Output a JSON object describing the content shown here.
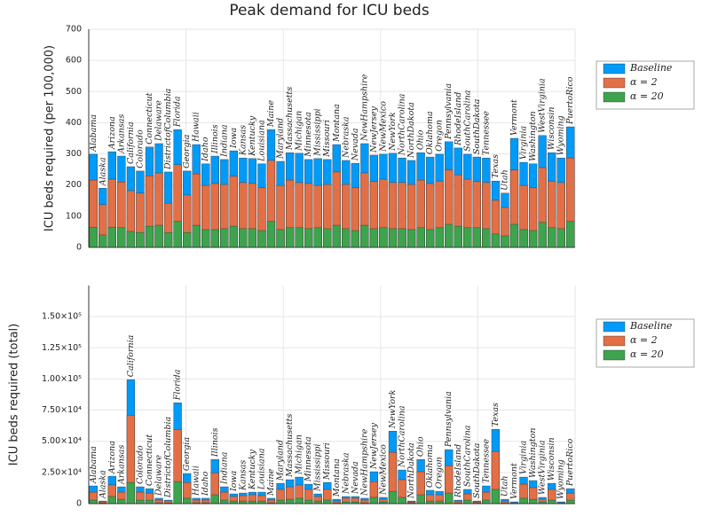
{
  "chart_data": [
    {
      "type": "bar",
      "title": "Peak demand for ICU beds",
      "y_label": "ICU beds required (per 100,000)",
      "categories": [
        "Alabama",
        "Alaska",
        "Arizona",
        "Arkansas",
        "California",
        "Colorado",
        "Connecticut",
        "Delaware",
        "DistrictofColumbia",
        "Florida",
        "Georgia",
        "Hawaii",
        "Idaho",
        "Illinois",
        "Indiana",
        "Iowa",
        "Kansas",
        "Kentucky",
        "Louisiana",
        "Maine",
        "Maryland",
        "Massachusetts",
        "Michigan",
        "Minnesota",
        "Mississippi",
        "Missouri",
        "Montana",
        "Nebraska",
        "Nevada",
        "NewHampshire",
        "NewJersey",
        "NewMexico",
        "NewYork",
        "NorthCarolina",
        "NorthDakota",
        "Ohio",
        "Oklahoma",
        "Oregon",
        "Pennsylvania",
        "RhodeIsland",
        "SouthCarolina",
        "SouthDakota",
        "Tennessee",
        "Texas",
        "Utah",
        "Vermont",
        "Virginia",
        "Washington",
        "WestVirginia",
        "Wisconsin",
        "Wyoming",
        "PuertoRico"
      ],
      "series": [
        {
          "name": "Baseline",
          "color": "#009af9",
          "values": [
            299,
            190,
            307,
            293,
            259,
            245,
            322,
            333,
            242,
            378,
            245,
            330,
            268,
            293,
            282,
            310,
            287,
            285,
            268,
            378,
            276,
            304,
            302,
            282,
            285,
            282,
            330,
            279,
            270,
            333,
            296,
            299,
            302,
            287,
            279,
            304,
            290,
            299,
            339,
            319,
            299,
            290,
            287,
            213,
            174,
            350,
            273,
            268,
            359,
            304,
            287,
            387
          ]
        },
        {
          "name": "α = 2",
          "color": "#e26f46",
          "values": [
            216,
            137,
            219,
            210,
            182,
            174,
            230,
            239,
            142,
            265,
            168,
            236,
            199,
            205,
            202,
            228,
            208,
            205,
            191,
            279,
            199,
            216,
            208,
            205,
            199,
            202,
            242,
            202,
            191,
            239,
            211,
            219,
            208,
            208,
            202,
            216,
            205,
            213,
            248,
            233,
            219,
            211,
            208,
            151,
            128,
            248,
            199,
            191,
            256,
            213,
            208,
            287
          ]
        },
        {
          "name": "α = 20",
          "color": "#3da44d",
          "values": [
            65,
            40,
            65,
            63,
            51,
            48,
            68,
            71,
            48,
            83,
            48,
            71,
            57,
            57,
            60,
            68,
            60,
            60,
            54,
            83,
            57,
            63,
            63,
            60,
            63,
            60,
            71,
            60,
            54,
            71,
            60,
            63,
            60,
            60,
            57,
            63,
            57,
            63,
            74,
            68,
            63,
            63,
            60,
            43,
            37,
            74,
            57,
            54,
            80,
            63,
            60,
            83
          ]
        }
      ],
      "ylim": [
        0,
        700
      ],
      "yticks": [
        0,
        100,
        200,
        300,
        400,
        500,
        600,
        700
      ],
      "grid": true,
      "legend": "right"
    },
    {
      "type": "bar",
      "y_label": "ICU beds required  (total)",
      "categories": [
        "Alabama",
        "Alaska",
        "Arizona",
        "Arkansas",
        "California",
        "Colorado",
        "Connecticut",
        "Delaware",
        "DistrictofColumbia",
        "Florida",
        "Georgia",
        "Hawaii",
        "Idaho",
        "Illinois",
        "Indiana",
        "Iowa",
        "Kansas",
        "Kentucky",
        "Louisiana",
        "Maine",
        "Maryland",
        "Massachusetts",
        "Michigan",
        "Minnesota",
        "Mississippi",
        "Missouri",
        "Montana",
        "Nebraska",
        "Nevada",
        "NewHampshire",
        "NewJersey",
        "NewMexico",
        "NewYork",
        "NorthCarolina",
        "NorthDakota",
        "Ohio",
        "Oklahoma",
        "Oregon",
        "Pennsylvania",
        "RhodeIsland",
        "SouthCarolina",
        "SouthDakota",
        "Tennessee",
        "Texas",
        "Utah",
        "Vermont",
        "Virginia",
        "Washington",
        "WestVirginia",
        "Wisconsin",
        "Wyoming",
        "PuertoRico"
      ],
      "series": [
        {
          "name": "Baseline",
          "color": "#009af9",
          "values": [
            14200,
            2100,
            22000,
            13500,
            99400,
            13500,
            12000,
            4300,
            2800,
            80900,
            24100,
            4300,
            4300,
            35500,
            13500,
            7800,
            8500,
            9200,
            9200,
            4300,
            16300,
            19200,
            21300,
            15600,
            7800,
            17000,
            3500,
            5700,
            5700,
            4300,
            25600,
            5000,
            58200,
            27000,
            2100,
            35500,
            10700,
            9900,
            43300,
            2800,
            11400,
            2100,
            14200,
            59600,
            3500,
            1400,
            21300,
            18500,
            5000,
            16300,
            1400,
            12000
          ]
        },
        {
          "name": "α = 2",
          "color": "#e26f46",
          "values": [
            9200,
            1400,
            15000,
            9200,
            71000,
            9200,
            8500,
            2800,
            2100,
            59600,
            17000,
            2800,
            2800,
            24800,
            9200,
            5700,
            6400,
            7100,
            6400,
            2800,
            11400,
            13500,
            14900,
            11400,
            5700,
            11400,
            2100,
            4300,
            4300,
            2800,
            17700,
            3500,
            41200,
            19200,
            1400,
            25600,
            7100,
            7100,
            30500,
            2100,
            7800,
            1400,
            9200,
            41900,
            2100,
            700,
            15600,
            12800,
            3500,
            11400,
            700,
            8500
          ]
        },
        {
          "name": "α = 20",
          "color": "#3da44d",
          "values": [
            2800,
            500,
            5700,
            3500,
            17000,
            2800,
            2800,
            700,
            500,
            17700,
            4300,
            700,
            700,
            7100,
            2800,
            2100,
            2100,
            2100,
            2100,
            700,
            2800,
            3500,
            4300,
            2800,
            2100,
            2800,
            700,
            1400,
            1400,
            700,
            5000,
            1400,
            9900,
            5000,
            700,
            7100,
            2100,
            2100,
            8500,
            700,
            2800,
            700,
            2800,
            11400,
            700,
            300,
            4300,
            3500,
            1400,
            2800,
            300,
            2800
          ]
        }
      ],
      "ylim": [
        0,
        175000
      ],
      "yticks": [
        0,
        {
          "value": 25000,
          "label": "2.50×10⁴"
        },
        {
          "value": 50000,
          "label": "5.00×10⁴"
        },
        {
          "value": 75000,
          "label": "7.50×10⁴"
        },
        {
          "value": 100000,
          "label": "1.00×10⁵"
        },
        {
          "value": 125000,
          "label": "1.25×10⁵"
        },
        {
          "value": 150000,
          "label": "1.50×10⁵"
        }
      ],
      "grid": true,
      "legend": "right"
    }
  ]
}
